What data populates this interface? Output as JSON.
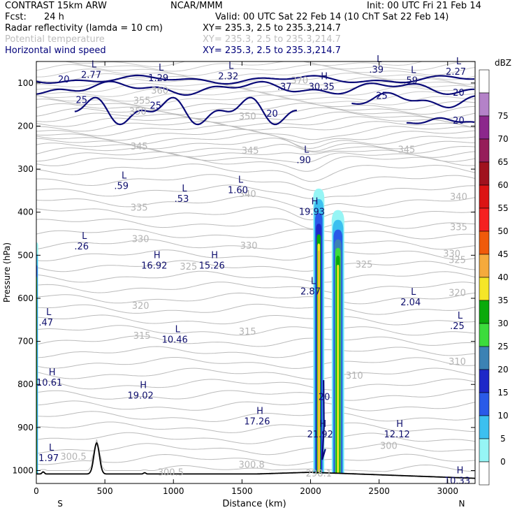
{
  "header": {
    "title_left": "CONTRAST 15km ARW",
    "title_center": "NCAR/MMM",
    "init": "Init: 00 UTC Fri 21 Feb 14",
    "fcst_label": "Fcst:",
    "fcst_value": "24 h",
    "valid": "Valid: 00 UTC Sat 22 Feb 14 (10 ChT Sat 22 Feb 14)",
    "fields": [
      {
        "name": "Radar reflectivity (lamda = 10 cm)",
        "xy": "XY= 235.3,  2.5 to 235.3,214.7"
      },
      {
        "name": "Potential temperature",
        "xy": "XY= 235.3,  2.5 to 235.3,214.7"
      },
      {
        "name": "Horizontal wind speed",
        "xy": "XY= 235.3,  2.5 to 235.3,214.7"
      }
    ]
  },
  "chart_data": {
    "type": "cross-section",
    "xlabel": "Distance (km)",
    "ylabel": "Pressure (hPa)",
    "xlim": [
      0,
      3200
    ],
    "ylim": [
      1030,
      50
    ],
    "x_ticks": [
      0,
      500,
      1000,
      1500,
      2000,
      2500,
      3000
    ],
    "y_ticks": [
      100,
      200,
      300,
      400,
      500,
      600,
      700,
      800,
      900,
      1000
    ],
    "x_end_labels": {
      "left": "S",
      "right": "N"
    },
    "colorbar": {
      "unit": "dBZ",
      "levels": [
        "0",
        "5",
        "10",
        "15",
        "20",
        "25",
        "30",
        "35",
        "40",
        "45",
        "50",
        "55",
        "60",
        "65",
        "70",
        "75"
      ],
      "colors": [
        "#96f5f5",
        "#3cc0f0",
        "#2a5ae8",
        "#1e28c8",
        "#3c82b4",
        "#3cdc3c",
        "#0aaa0a",
        "#f5e628",
        "#f5aa3c",
        "#f05a0a",
        "#f52020",
        "#dc1414",
        "#a0121e",
        "#961e5a",
        "#8c288c",
        "#b482c8"
      ]
    },
    "theta_labels": [
      {
        "v": "370",
        "x": 1920,
        "p": 95
      },
      {
        "v": "360",
        "x": 900,
        "p": 118
      },
      {
        "v": "355",
        "x": 770,
        "p": 142
      },
      {
        "v": "350",
        "x": 740,
        "p": 167
      },
      {
        "v": "350",
        "x": 1540,
        "p": 178
      },
      {
        "v": "345",
        "x": 750,
        "p": 248
      },
      {
        "v": "345",
        "x": 1560,
        "p": 258
      },
      {
        "v": "345",
        "x": 2700,
        "p": 255
      },
      {
        "v": "340",
        "x": 1540,
        "p": 358
      },
      {
        "v": "340",
        "x": 3080,
        "p": 365
      },
      {
        "v": "335",
        "x": 750,
        "p": 390
      },
      {
        "v": "335",
        "x": 3080,
        "p": 435
      },
      {
        "v": "330",
        "x": 760,
        "p": 463
      },
      {
        "v": "330",
        "x": 1550,
        "p": 478
      },
      {
        "v": "330",
        "x": 3030,
        "p": 497
      },
      {
        "v": "325",
        "x": 1110,
        "p": 527
      },
      {
        "v": "325",
        "x": 2390,
        "p": 522
      },
      {
        "v": "325",
        "x": 3070,
        "p": 512
      },
      {
        "v": "320",
        "x": 760,
        "p": 618
      },
      {
        "v": "320",
        "x": 3070,
        "p": 588
      },
      {
        "v": "315",
        "x": 770,
        "p": 688
      },
      {
        "v": "315",
        "x": 1540,
        "p": 678
      },
      {
        "v": "310",
        "x": 2320,
        "p": 780
      },
      {
        "v": "310",
        "x": 3070,
        "p": 748
      },
      {
        "v": "300.5",
        "x": 270,
        "p": 968
      },
      {
        "v": "300",
        "x": 2570,
        "p": 943
      },
      {
        "v": "300.5",
        "x": 980,
        "p": 1005
      },
      {
        "v": "300.8",
        "x": 1570,
        "p": 987
      },
      {
        "v": "298.1",
        "x": 2060,
        "p": 1007
      }
    ],
    "wind_contours": [
      "20",
      "25"
    ],
    "wind_labels": [
      {
        "v": "20",
        "x": 200,
        "p": 92
      },
      {
        "v": "25",
        "x": 330,
        "p": 140
      },
      {
        "v": "25",
        "x": 870,
        "p": 153
      },
      {
        "v": "20",
        "x": 1720,
        "p": 172
      },
      {
        "v": "25",
        "x": 2520,
        "p": 130
      },
      {
        "v": "20",
        "x": 3080,
        "p": 123
      },
      {
        "v": "20",
        "x": 3080,
        "p": 188
      },
      {
        "v": "20",
        "x": 2100,
        "p": 830
      }
    ],
    "extrema": [
      {
        "t": "L",
        "x": 400,
        "p": 67,
        "v": "2.77"
      },
      {
        "t": "L",
        "x": 890,
        "p": 74,
        "v": "1.29"
      },
      {
        "t": "L",
        "x": 1400,
        "p": 70,
        "v": "2.32"
      },
      {
        "t": "",
        "x": 1810,
        "p": 95,
        "v": ".37"
      },
      {
        "t": "H",
        "x": 2080,
        "p": 95,
        "v": "30.35"
      },
      {
        "t": "L",
        "x": 2480,
        "p": 55,
        "v": ".39"
      },
      {
        "t": "L",
        "x": 2730,
        "p": 80,
        "v": ".59"
      },
      {
        "t": "L",
        "x": 3060,
        "p": 60,
        "v": "2.27"
      },
      {
        "t": "L",
        "x": 1950,
        "p": 265,
        "v": ".90"
      },
      {
        "t": "L",
        "x": 620,
        "p": 325,
        "v": ".59"
      },
      {
        "t": "L",
        "x": 1060,
        "p": 355,
        "v": ".53"
      },
      {
        "t": "L",
        "x": 1470,
        "p": 335,
        "v": "1.60"
      },
      {
        "t": "H",
        "x": 2010,
        "p": 385,
        "v": "19.93"
      },
      {
        "t": "L",
        "x": 330,
        "p": 465,
        "v": ".26"
      },
      {
        "t": "H",
        "x": 860,
        "p": 510,
        "v": "16.92"
      },
      {
        "t": "H",
        "x": 1280,
        "p": 510,
        "v": "15.26"
      },
      {
        "t": "L",
        "x": 2000,
        "p": 570,
        "v": "2.87"
      },
      {
        "t": "L",
        "x": 2730,
        "p": 595,
        "v": "2.04"
      },
      {
        "t": "L",
        "x": 3070,
        "p": 650,
        "v": ".25"
      },
      {
        "t": "L",
        "x": 70,
        "p": 642,
        "v": ".47"
      },
      {
        "t": "L",
        "x": 1010,
        "p": 682,
        "v": "10.46"
      },
      {
        "t": "H",
        "x": 95,
        "p": 782,
        "v": "10.61"
      },
      {
        "t": "H",
        "x": 760,
        "p": 812,
        "v": "19.02"
      },
      {
        "t": "H",
        "x": 1610,
        "p": 872,
        "v": "17.26"
      },
      {
        "t": "H",
        "x": 2070,
        "p": 902,
        "v": "21.92"
      },
      {
        "t": "H",
        "x": 2630,
        "p": 902,
        "v": "12.12"
      },
      {
        "t": "L",
        "x": 90,
        "p": 957,
        "v": "1.97"
      },
      {
        "t": "H",
        "x": 3070,
        "p": 1010,
        "v": "10.33"
      }
    ]
  }
}
